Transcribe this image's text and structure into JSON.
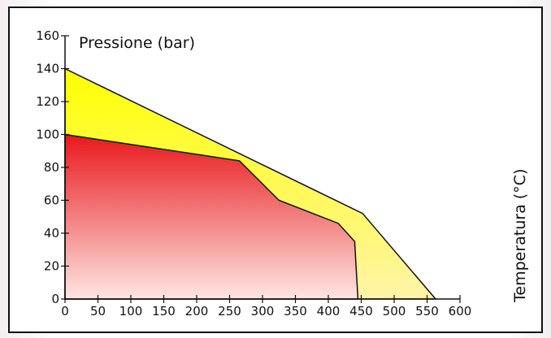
{
  "chart_data": {
    "type": "area",
    "ylabel": "Pressione (bar)",
    "xlabel": "Temperatura (°C)",
    "xlim": [
      0,
      600
    ],
    "ylim": [
      0,
      160
    ],
    "xticks": [
      0,
      50,
      100,
      150,
      200,
      250,
      300,
      350,
      400,
      450,
      500,
      550,
      600
    ],
    "yticks": [
      0,
      20,
      40,
      60,
      80,
      100,
      120,
      140,
      160
    ],
    "grid": false,
    "series": [
      {
        "colors": [
          "#ffff00",
          "#fff4a8"
        ],
        "points": [
          [
            0,
            140
          ],
          [
            452,
            52
          ],
          [
            563,
            0
          ],
          [
            0,
            0
          ]
        ]
      },
      {
        "colors": [
          "#e8181c",
          "#fde6e2"
        ],
        "points": [
          [
            0,
            100
          ],
          [
            265,
            84
          ],
          [
            325,
            60
          ],
          [
            415,
            46
          ],
          [
            440,
            35
          ],
          [
            445,
            0
          ],
          [
            0,
            0
          ]
        ]
      }
    ]
  }
}
